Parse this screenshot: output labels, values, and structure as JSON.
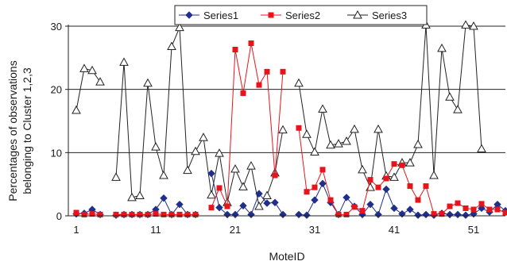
{
  "chart_data": {
    "type": "line",
    "title": "",
    "xlabel": "MoteID",
    "ylabel_lines": [
      "Percentages of observations",
      "belonging to Cluster 1,2,3"
    ],
    "xlim": [
      1,
      55
    ],
    "ylim": [
      0,
      30
    ],
    "x_ticks": [
      1,
      11,
      21,
      31,
      41,
      51
    ],
    "y_ticks": [
      0,
      10,
      20,
      30
    ],
    "grid": "horizontal",
    "legend_position": "top",
    "x": [
      1,
      2,
      3,
      4,
      5,
      6,
      7,
      8,
      9,
      10,
      11,
      12,
      13,
      14,
      15,
      16,
      17,
      18,
      19,
      20,
      21,
      22,
      23,
      24,
      25,
      26,
      27,
      28,
      29,
      30,
      31,
      32,
      33,
      34,
      35,
      36,
      37,
      38,
      39,
      40,
      41,
      42,
      43,
      44,
      45,
      46,
      47,
      48,
      49,
      50,
      51,
      52,
      53,
      54,
      55
    ],
    "series": [
      {
        "name": "Series1",
        "color": "#1f2f8a",
        "marker": "diamond",
        "values": [
          0.3,
          0.4,
          1.0,
          0.2,
          null,
          0.1,
          0.2,
          0.2,
          0.2,
          0.2,
          1.0,
          2.8,
          0.2,
          1.8,
          0.2,
          0.2,
          null,
          6.7,
          1.3,
          0.2,
          0.2,
          1.6,
          0.2,
          3.5,
          2.0,
          2.1,
          0.2,
          null,
          0.2,
          0.1,
          2.5,
          5.1,
          2.1,
          0.2,
          2.9,
          1.5,
          0.2,
          1.8,
          0.2,
          4.2,
          1.2,
          0.3,
          1.0,
          0.1,
          0.2,
          0.1,
          0.4,
          0.2,
          0.2,
          0.1,
          0.3,
          1.2,
          0.6,
          1.8,
          0.8
        ]
      },
      {
        "name": "Series2",
        "color": "#e8141c",
        "marker": "square",
        "values": [
          0.5,
          0.2,
          0.3,
          0.2,
          null,
          0.2,
          0.2,
          0.2,
          0.2,
          0.2,
          0.3,
          0.2,
          0.2,
          0.2,
          0.2,
          0.2,
          null,
          1.3,
          4.4,
          1.5,
          26.3,
          19.4,
          27.3,
          20.7,
          22.8,
          6.4,
          22.8,
          null,
          13.9,
          3.8,
          4.5,
          7.3,
          2.5,
          0.2,
          0.2,
          1.4,
          0.8,
          5.7,
          4.5,
          5.9,
          8.2,
          8.0,
          4.7,
          2.5,
          4.7,
          0.3,
          0.3,
          1.5,
          2.0,
          1.2,
          1.0,
          1.9,
          1.0,
          1.0,
          0.5
        ]
      },
      {
        "name": "Series3",
        "color": "#222222",
        "marker": "triangle",
        "values": [
          16.7,
          23.3,
          23.0,
          21.2,
          null,
          6.1,
          24.3,
          2.9,
          3.2,
          21.0,
          10.9,
          6.4,
          26.8,
          29.8,
          7.2,
          10.2,
          12.4,
          3.3,
          9.9,
          2.1,
          7.4,
          4.6,
          7.9,
          1.5,
          3.2,
          6.8,
          13.6,
          null,
          21.0,
          12.9,
          10.1,
          16.9,
          11.2,
          11.4,
          11.8,
          13.7,
          7.3,
          4.5,
          13.7,
          6.3,
          6.1,
          8.4,
          8.4,
          11.3,
          30.2,
          6.4,
          26.5,
          18.8,
          16.8,
          30.2,
          30.0,
          10.6,
          null,
          null,
          null
        ]
      }
    ]
  }
}
